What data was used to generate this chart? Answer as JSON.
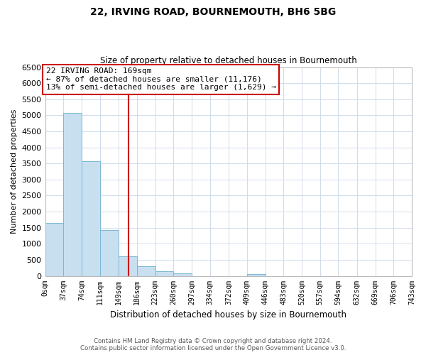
{
  "title": "22, IRVING ROAD, BOURNEMOUTH, BH6 5BG",
  "subtitle": "Size of property relative to detached houses in Bournemouth",
  "xlabel": "Distribution of detached houses by size in Bournemouth",
  "ylabel": "Number of detached properties",
  "bar_color": "#c8dff0",
  "bar_edge_color": "#7ab8d4",
  "bin_edges": [
    0,
    37,
    74,
    111,
    149,
    186,
    223,
    260,
    297,
    334,
    372,
    409,
    446,
    483,
    520,
    557,
    594,
    632,
    669,
    706,
    743
  ],
  "bin_labels": [
    "0sqm",
    "37sqm",
    "74sqm",
    "111sqm",
    "149sqm",
    "186sqm",
    "223sqm",
    "260sqm",
    "297sqm",
    "334sqm",
    "372sqm",
    "409sqm",
    "446sqm",
    "483sqm",
    "520sqm",
    "557sqm",
    "594sqm",
    "632sqm",
    "669sqm",
    "706sqm",
    "743sqm"
  ],
  "counts": [
    1650,
    5080,
    3580,
    1430,
    620,
    300,
    145,
    70,
    0,
    0,
    0,
    50,
    0,
    0,
    0,
    0,
    0,
    0,
    0,
    0
  ],
  "property_line_x": 169,
  "ylim": [
    0,
    6500
  ],
  "yticks": [
    0,
    500,
    1000,
    1500,
    2000,
    2500,
    3000,
    3500,
    4000,
    4500,
    5000,
    5500,
    6000,
    6500
  ],
  "annotation_line1": "22 IRVING ROAD: 169sqm",
  "annotation_line2": "← 87% of detached houses are smaller (11,176)",
  "annotation_line3": "13% of semi-detached houses are larger (1,629) →",
  "annotation_box_color": "#ffffff",
  "annotation_box_edge": "#cc0000",
  "property_line_color": "#cc0000",
  "footer_line1": "Contains HM Land Registry data © Crown copyright and database right 2024.",
  "footer_line2": "Contains public sector information licensed under the Open Government Licence v3.0.",
  "background_color": "#ffffff",
  "grid_color": "#d0dcea"
}
